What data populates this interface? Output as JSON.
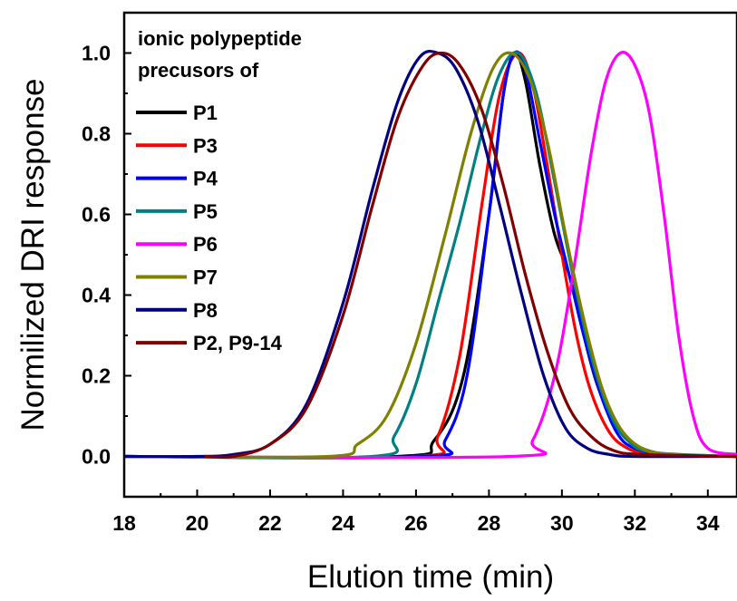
{
  "chart_data": {
    "type": "line",
    "xlabel": "Elution time (min)",
    "ylabel": "Normilized DRI response",
    "xlim": [
      18,
      34.8
    ],
    "ylim": [
      -0.1,
      1.1
    ],
    "x_ticks": [
      "18",
      "20",
      "22",
      "24",
      "26",
      "28",
      "30",
      "32",
      "34"
    ],
    "y_ticks": [
      "0.0",
      "0.2",
      "0.4",
      "0.6",
      "0.8",
      "1.0"
    ],
    "grid": false,
    "legend": {
      "placement": "top-left",
      "title_lines": [
        "ionic polypeptide",
        "precusors of"
      ]
    },
    "series": [
      {
        "name": "P1",
        "color": "#000000",
        "x": [
          18,
          25.5,
          26.5,
          27.3,
          28,
          28.4,
          28.7,
          29.0,
          29.4,
          29.8,
          30.2,
          30.6,
          31.0,
          31.6,
          32.2,
          33,
          34.8
        ],
        "y": [
          0,
          0,
          0.04,
          0.2,
          0.6,
          0.9,
          1.0,
          0.93,
          0.72,
          0.55,
          0.45,
          0.3,
          0.17,
          0.06,
          0.02,
          0.005,
          0
        ]
      },
      {
        "name": "P3",
        "color": "#ff0000",
        "x": [
          18,
          26.0,
          26.6,
          27.2,
          27.8,
          28.3,
          28.8,
          29.2,
          29.6,
          30.0,
          30.4,
          30.8,
          31.3,
          31.8,
          32.4,
          33,
          34.8
        ],
        "y": [
          0,
          0,
          0.05,
          0.25,
          0.62,
          0.9,
          1.0,
          0.92,
          0.72,
          0.5,
          0.3,
          0.16,
          0.06,
          0.02,
          0.005,
          0.002,
          0
        ]
      },
      {
        "name": "P4",
        "color": "#0000ff",
        "x": [
          18,
          26.2,
          26.8,
          27.4,
          28.0,
          28.4,
          28.7,
          29.0,
          29.4,
          29.8,
          30.2,
          30.6,
          31.0,
          31.5,
          32.0,
          33,
          34.8
        ],
        "y": [
          0,
          0,
          0.04,
          0.2,
          0.6,
          0.9,
          1.0,
          0.96,
          0.78,
          0.6,
          0.45,
          0.3,
          0.17,
          0.06,
          0.02,
          0.004,
          0
        ]
      },
      {
        "name": "P5",
        "color": "#008080",
        "x": [
          18,
          24.8,
          25.4,
          26.0,
          26.6,
          27.2,
          27.8,
          28.3,
          28.8,
          29.3,
          29.8,
          30.3,
          30.8,
          31.3,
          31.8,
          32.5,
          34.8
        ],
        "y": [
          0,
          0,
          0.05,
          0.18,
          0.38,
          0.58,
          0.8,
          0.95,
          1.0,
          0.9,
          0.68,
          0.45,
          0.25,
          0.11,
          0.04,
          0.01,
          0
        ]
      },
      {
        "name": "P6",
        "color": "#ff00ff",
        "x": [
          18,
          28.6,
          29.2,
          29.8,
          30.3,
          30.8,
          31.2,
          31.6,
          32.0,
          32.4,
          32.8,
          33.2,
          33.6,
          34.0,
          34.8
        ],
        "y": [
          0,
          0,
          0.04,
          0.2,
          0.45,
          0.75,
          0.93,
          1.0,
          0.97,
          0.85,
          0.6,
          0.3,
          0.1,
          0.02,
          0.005
        ]
      },
      {
        "name": "P7",
        "color": "#808000",
        "x": [
          18,
          23.6,
          24.4,
          25.2,
          26.0,
          26.8,
          27.5,
          28.1,
          28.6,
          29.1,
          29.6,
          30.1,
          30.6,
          31.1,
          31.6,
          32.2,
          33,
          34.8
        ],
        "y": [
          0,
          0,
          0.03,
          0.1,
          0.28,
          0.55,
          0.8,
          0.96,
          1.0,
          0.94,
          0.78,
          0.55,
          0.34,
          0.17,
          0.07,
          0.02,
          0.005,
          0
        ]
      },
      {
        "name": "P8",
        "color": "#000080",
        "x": [
          18,
          20,
          21,
          22,
          23,
          24,
          24.8,
          25.5,
          26.1,
          26.6,
          27.1,
          27.7,
          28.3,
          28.9,
          29.5,
          30.1,
          30.7,
          31.3,
          32,
          34.8
        ],
        "y": [
          0,
          0,
          0.005,
          0.03,
          0.13,
          0.38,
          0.66,
          0.88,
          0.99,
          1.0,
          0.96,
          0.83,
          0.62,
          0.4,
          0.2,
          0.07,
          0.02,
          0.005,
          0,
          0
        ]
      },
      {
        "name": "P2, P9-14",
        "color": "#800000",
        "x": [
          20.2,
          21,
          22,
          23,
          24,
          24.8,
          25.5,
          26.2,
          26.7,
          27.2,
          27.8,
          28.4,
          29.0,
          29.6,
          30.2,
          30.8,
          31.4,
          32.2,
          34.8
        ],
        "y": [
          0,
          0,
          0.03,
          0.12,
          0.35,
          0.62,
          0.84,
          0.97,
          1.0,
          0.97,
          0.86,
          0.67,
          0.45,
          0.26,
          0.12,
          0.05,
          0.015,
          0.005,
          0
        ]
      }
    ]
  }
}
